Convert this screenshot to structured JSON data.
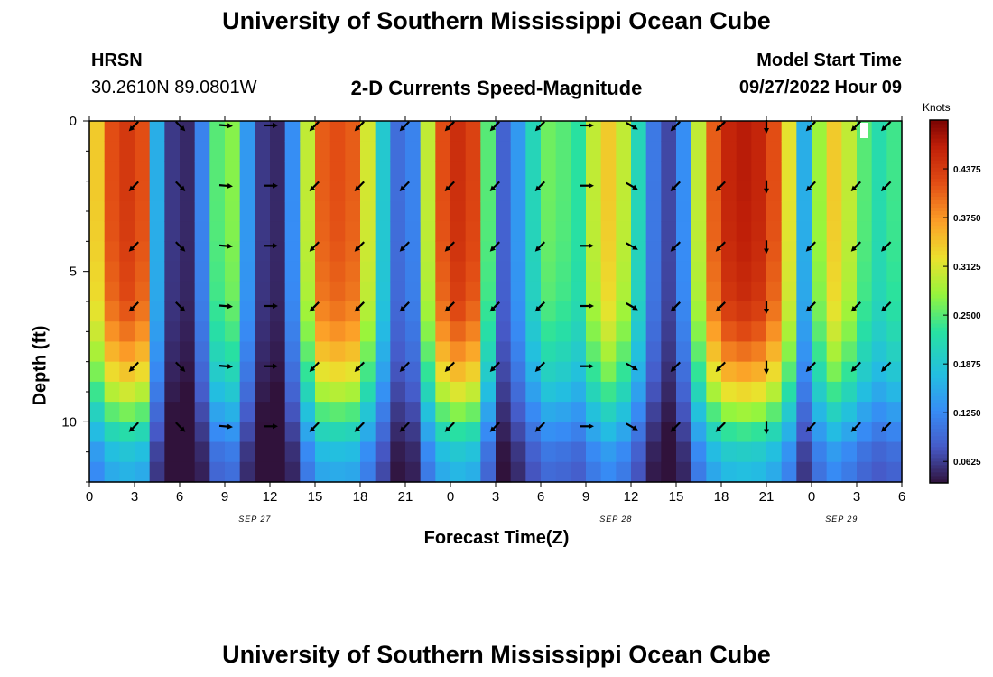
{
  "page": {
    "title_top": "University of Southern Mississippi Ocean Cube",
    "title_bottom": "University of Southern Mississippi Ocean Cube"
  },
  "station": {
    "name": "HRSN",
    "coords": "30.2610N  89.0801W"
  },
  "model": {
    "label": "Model Start Time",
    "value": "09/27/2022 Hour 09"
  },
  "chart_data": {
    "type": "heatmap",
    "title": "2-D Currents Speed-Magnitude",
    "xlabel": "Forecast Time(Z)",
    "ylabel": "Depth (ft)",
    "x_range": [
      0,
      54
    ],
    "y_range": [
      0,
      12
    ],
    "x_tick_labels": [
      "0",
      "3",
      "6",
      "9",
      "12",
      "15",
      "18",
      "21",
      "0",
      "3",
      "6",
      "9",
      "12",
      "15",
      "18",
      "21",
      "0",
      "3",
      "6"
    ],
    "y_tick_labels": [
      "0",
      "5",
      "10"
    ],
    "date_labels": [
      "SEP 27",
      "SEP 28",
      "SEP 29"
    ],
    "date_positions_hours": [
      11,
      35,
      50
    ],
    "colorbar": {
      "unit_label": "Knots",
      "range": [
        0.035,
        0.5
      ],
      "ticks": [
        "0.0625",
        "0.1250",
        "0.1875",
        "0.2500",
        "0.3125",
        "0.3750",
        "0.4375"
      ],
      "tick_values": [
        0.0625,
        0.125,
        0.1875,
        0.25,
        0.3125,
        0.375,
        0.4375
      ]
    },
    "speed_profile_surface_knots": [
      0.34,
      0.42,
      0.44,
      0.42,
      0.16,
      0.06,
      0.05,
      0.12,
      0.25,
      0.27,
      0.14,
      0.06,
      0.05,
      0.13,
      0.3,
      0.41,
      0.42,
      0.41,
      0.31,
      0.19,
      0.1,
      0.12,
      0.3,
      0.42,
      0.45,
      0.43,
      0.25,
      0.09,
      0.14,
      0.21,
      0.26,
      0.25,
      0.23,
      0.3,
      0.34,
      0.3,
      0.21,
      0.11,
      0.07,
      0.13,
      0.3,
      0.41,
      0.46,
      0.47,
      0.46,
      0.42,
      0.32,
      0.16,
      0.28,
      0.34,
      0.3,
      0.25,
      0.22,
      0.24,
      0.27
    ],
    "depth_attenuation_ft": [
      [
        0,
        1.0
      ],
      [
        2,
        1.0
      ],
      [
        4,
        0.99
      ],
      [
        6,
        0.96
      ],
      [
        7,
        0.9
      ],
      [
        8,
        0.82
      ],
      [
        9,
        0.7
      ],
      [
        10,
        0.55
      ],
      [
        11,
        0.42
      ],
      [
        12,
        0.35
      ]
    ],
    "arrow_direction_deg_by_hour": [
      [
        3,
        225
      ],
      [
        6,
        135
      ],
      [
        9,
        95
      ],
      [
        12,
        90
      ],
      [
        15,
        225
      ],
      [
        18,
        225
      ],
      [
        21,
        225
      ],
      [
        24,
        225
      ],
      [
        27,
        225
      ],
      [
        30,
        225
      ],
      [
        33,
        90
      ],
      [
        36,
        120
      ],
      [
        39,
        225
      ],
      [
        42,
        225
      ],
      [
        45,
        180
      ],
      [
        48,
        225
      ],
      [
        51,
        225
      ],
      [
        53,
        225
      ]
    ],
    "arrow_depths_ft": [
      0,
      2,
      4,
      6,
      8,
      10
    ]
  }
}
